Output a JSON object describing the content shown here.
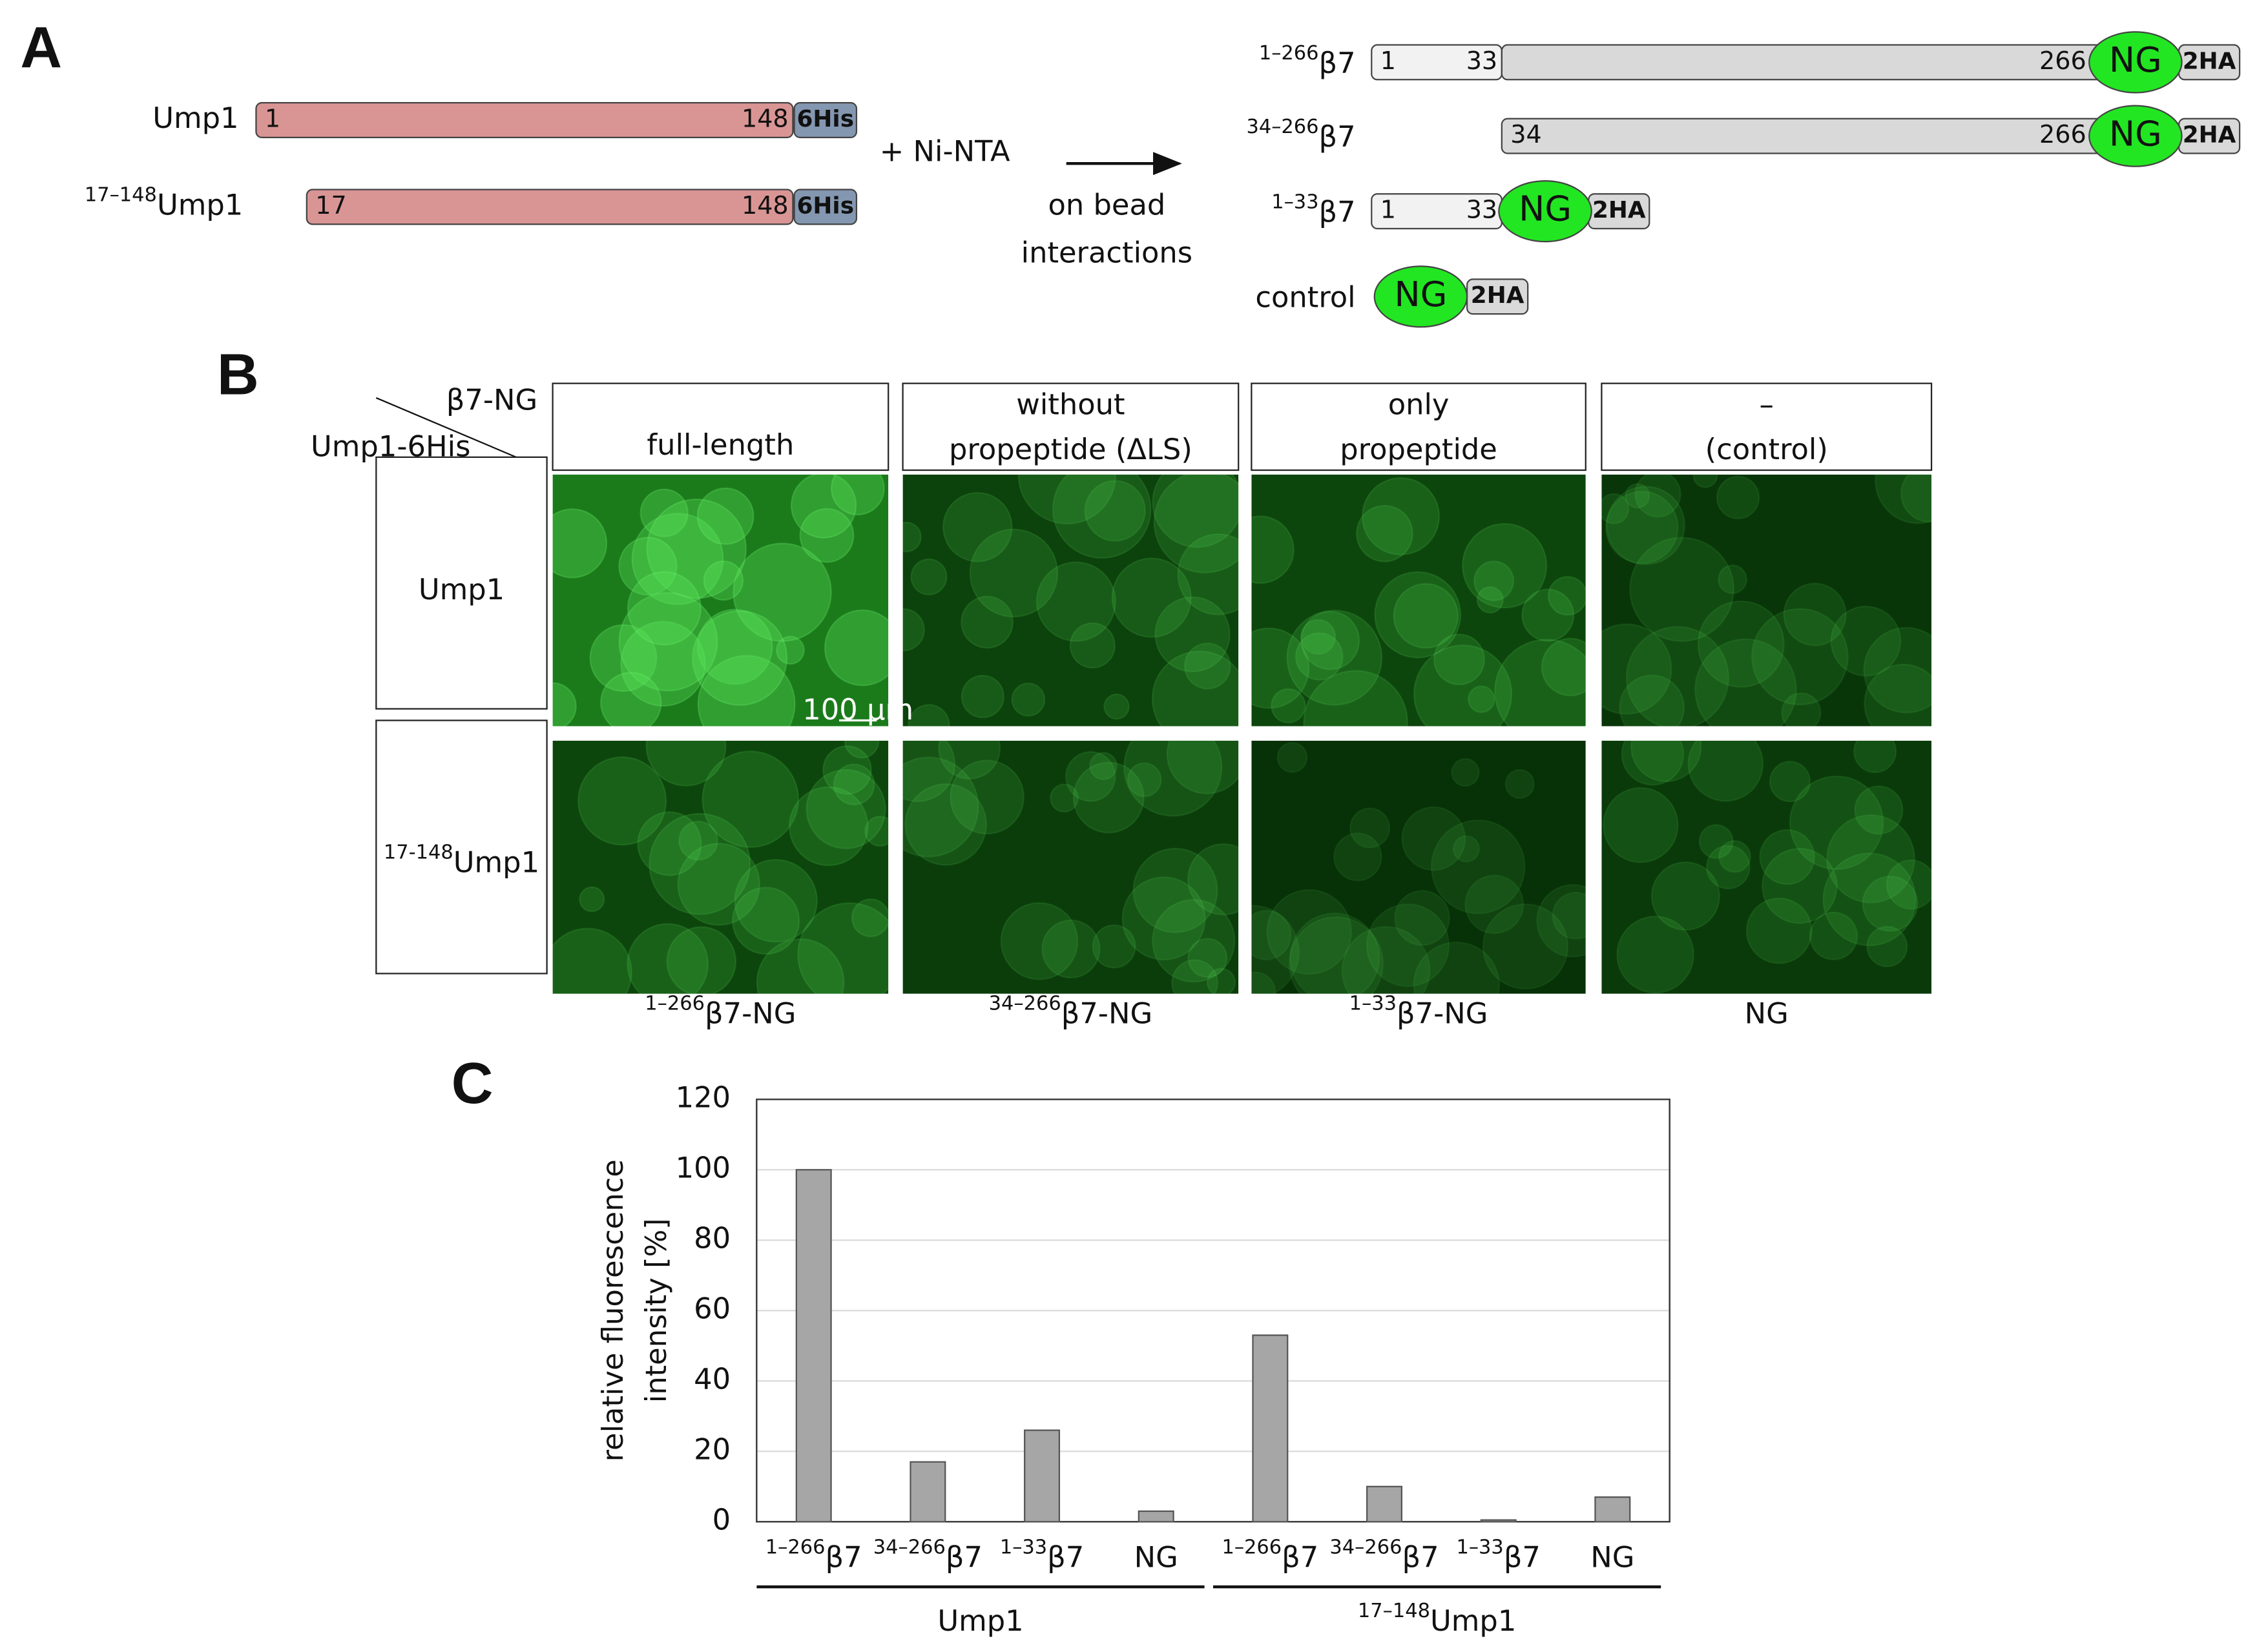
{
  "panel_a": {
    "label": "A",
    "ump1_constructs": [
      {
        "name": "Ump1",
        "start": "1",
        "end": "148",
        "tag": "6His"
      },
      {
        "superscript": "17–148",
        "name": "Ump1",
        "start": "17",
        "end": "148",
        "tag": "6His"
      }
    ],
    "reagent": "+ Ni-NTA",
    "arrow_caption": [
      "on bead",
      "interactions"
    ],
    "beta7_constructs": [
      {
        "superscript": "1–266",
        "name": "β7",
        "numbers": [
          "1",
          "33",
          "266"
        ],
        "fusion": "NG",
        "tag": "2HA"
      },
      {
        "superscript": "34–266",
        "name": "β7",
        "numbers": [
          "34",
          "266"
        ],
        "fusion": "NG",
        "tag": "2HA"
      },
      {
        "superscript": "1–33",
        "name": "β7",
        "numbers": [
          "1",
          "33"
        ],
        "fusion": "NG",
        "tag": "2HA"
      },
      {
        "name": "control",
        "fusion": "NG",
        "tag": "2HA"
      }
    ]
  },
  "panel_b": {
    "label": "B",
    "column_axis": "β7-NG",
    "row_axis": "Ump1-6His",
    "column_headers": [
      [
        "full-length"
      ],
      [
        "without",
        "propeptide (ΔLS)"
      ],
      [
        "only",
        "propeptide"
      ],
      [
        "–",
        "(control)"
      ]
    ],
    "rows": [
      {
        "name": "Ump1"
      },
      {
        "superscript": "17-148",
        "name": "Ump1"
      }
    ],
    "column_footers": [
      {
        "superscript": "1–266",
        "name": "β7-NG"
      },
      {
        "superscript": "34–266",
        "name": "β7-NG"
      },
      {
        "superscript": "1–33",
        "name": "β7-NG"
      },
      {
        "name": "NG"
      }
    ],
    "scale_bar": "100 µm"
  },
  "panel_c_label": "C",
  "chart_data": {
    "type": "bar",
    "y_label": [
      "relative fluorescence",
      "intensity [%]"
    ],
    "categories": [
      "β7",
      "β7",
      "β7",
      "NG",
      "β7",
      "β7",
      "β7",
      "NG"
    ],
    "category_superscripts": [
      "1–266",
      "34–266",
      "1–33",
      null,
      "1–266",
      "34–266",
      "1–33",
      null
    ],
    "groups": [
      {
        "name": "Ump1"
      },
      {
        "superscript": "17–148",
        "name": "Ump1"
      }
    ],
    "values": [
      100,
      17,
      26,
      3,
      53,
      10,
      0.5,
      7
    ],
    "color": "#a6a6a6",
    "ylim": [
      0,
      120
    ],
    "yticks": [
      0,
      20,
      40,
      60,
      80,
      100,
      120
    ],
    "grid": true
  }
}
